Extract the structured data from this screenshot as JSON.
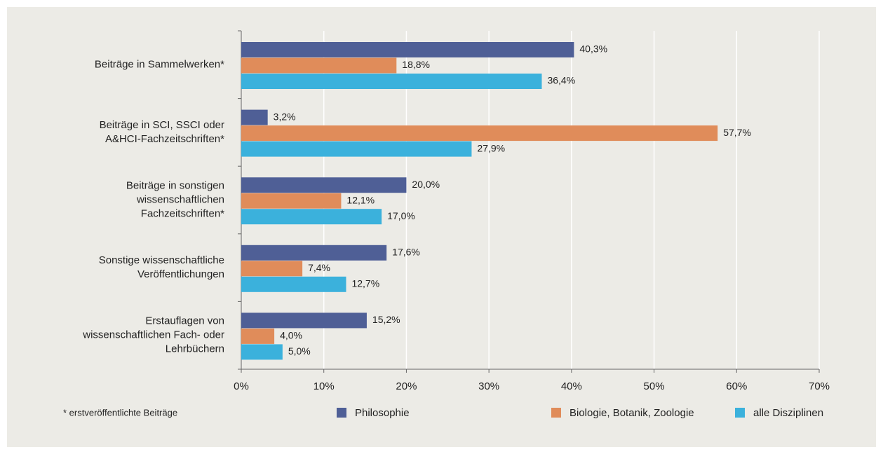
{
  "chart_data": {
    "type": "bar",
    "orientation": "horizontal",
    "categories": [
      [
        "Beiträge in Sammelwerken*"
      ],
      [
        "Beiträge in SCI, SSCI oder",
        "A&HCI-Fachzeitschriften*"
      ],
      [
        "Beiträge in sonstigen",
        "wissenschaftlichen",
        "Fachzeitschriften*"
      ],
      [
        "Sonstige wissenschaftliche",
        "Veröffentlichungen"
      ],
      [
        "Erstauflagen von",
        "wissenschaftlichen Fach- oder",
        "Lehrbüchern"
      ]
    ],
    "series": [
      {
        "name": "Philosophie",
        "color": "#4f5f96",
        "values": [
          40.3,
          3.2,
          20.0,
          17.6,
          15.2
        ],
        "value_labels": [
          "40,3%",
          "3,2%",
          "20,0%",
          "17,6%",
          "15,2%"
        ]
      },
      {
        "name": "Biologie, Botanik, Zoologie",
        "color": "#e08c5a",
        "values": [
          18.8,
          57.7,
          12.1,
          7.4,
          4.0
        ],
        "value_labels": [
          "18,8%",
          "57,7%",
          "12,1%",
          "7,4%",
          "4,0%"
        ]
      },
      {
        "name": "alle Disziplinen",
        "color": "#3bb1dc",
        "values": [
          36.4,
          27.9,
          17.0,
          12.7,
          5.0
        ],
        "value_labels": [
          "36,4%",
          "27,9%",
          "17,0%",
          "12,7%",
          "5,0%"
        ]
      }
    ],
    "xlim": [
      0,
      70
    ],
    "xticks": [
      {
        "value": 0,
        "label": "0%"
      },
      {
        "value": 10,
        "label": "10%"
      },
      {
        "value": 20,
        "label": "20%"
      },
      {
        "value": 30,
        "label": "30%"
      },
      {
        "value": 40,
        "label": "40%"
      },
      {
        "value": 50,
        "label": "50%"
      },
      {
        "value": 60,
        "label": "60%"
      },
      {
        "value": 70,
        "label": "70%"
      }
    ],
    "grid": true,
    "legend": "bottom",
    "footnote": "* erstveröffentlichte Beiträge"
  }
}
